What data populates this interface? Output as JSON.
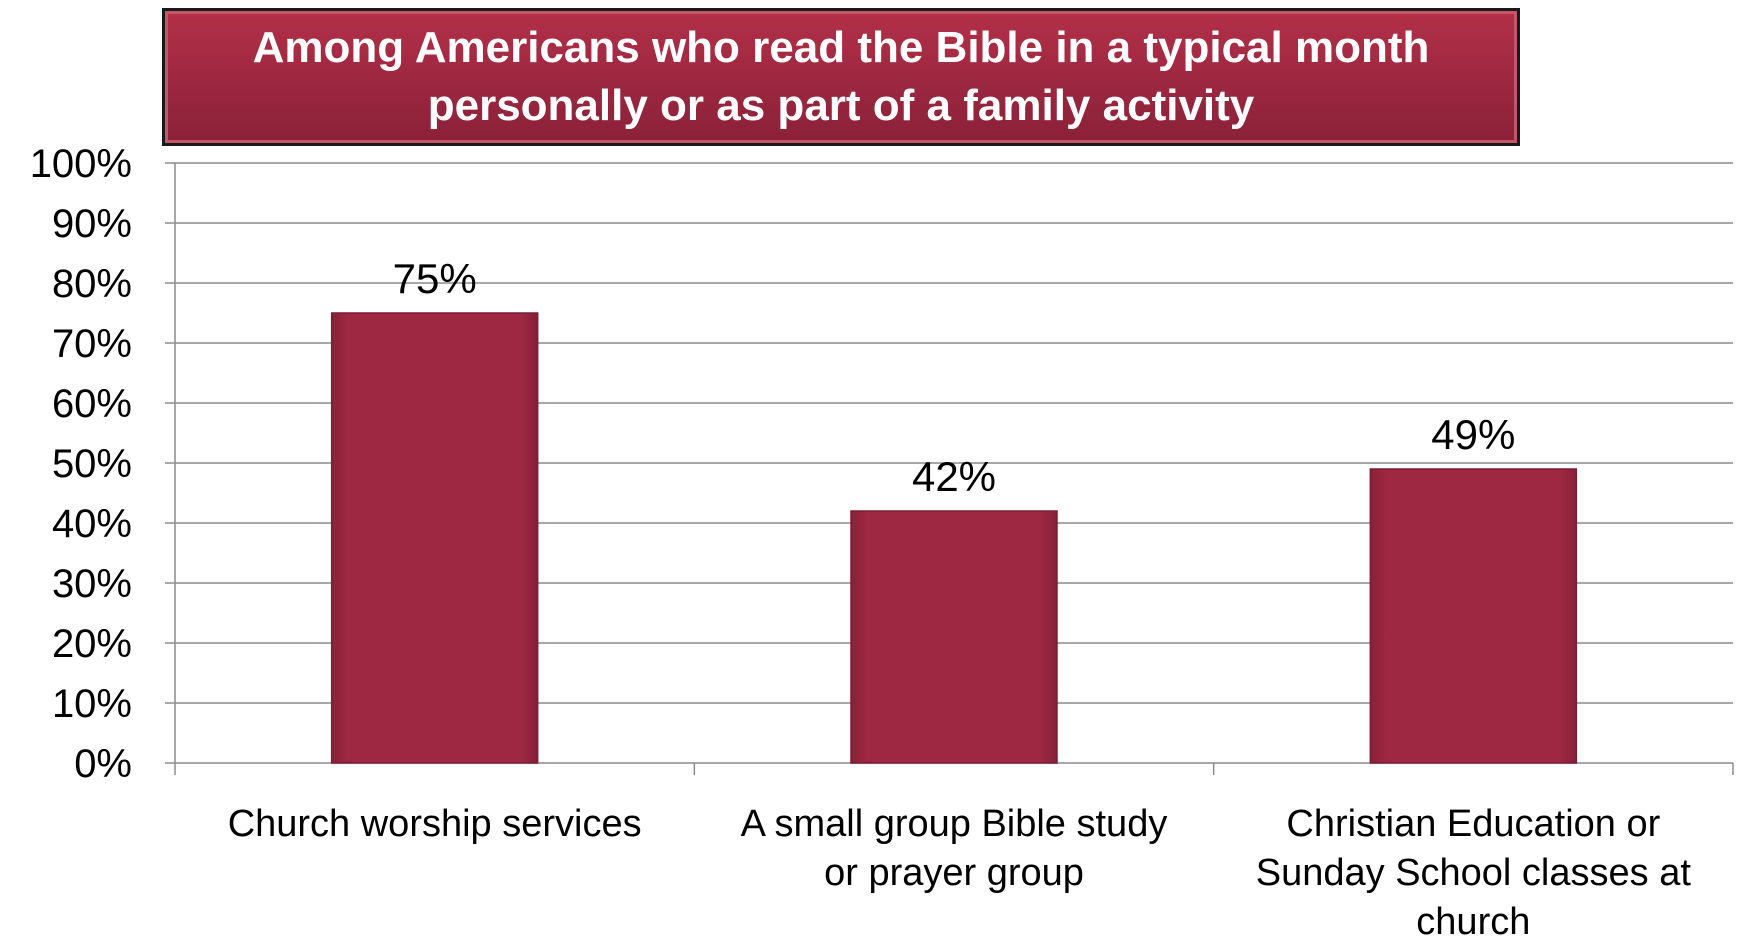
{
  "chart_data": {
    "type": "bar",
    "title_lines": [
      "Among Americans who read the Bible in a typical month",
      "personally or as part of a family activity"
    ],
    "categories": [
      [
        "Church worship services"
      ],
      [
        "A small group Bible study",
        "or prayer group"
      ],
      [
        "Christian Education or",
        "Sunday School classes at",
        "church"
      ]
    ],
    "values": [
      75,
      42,
      49
    ],
    "value_labels": [
      "75%",
      "42%",
      "49%"
    ],
    "ylim": [
      0,
      100
    ],
    "yticks": [
      "0%",
      "10%",
      "20%",
      "30%",
      "40%",
      "50%",
      "60%",
      "70%",
      "80%",
      "90%",
      "100%"
    ],
    "grid": true,
    "legend": "none",
    "colors": {
      "bar": "#9b2740",
      "bar_edge": "#7a1d33",
      "title_bg": "#9c2740",
      "grid": "#8c8c8c"
    }
  }
}
